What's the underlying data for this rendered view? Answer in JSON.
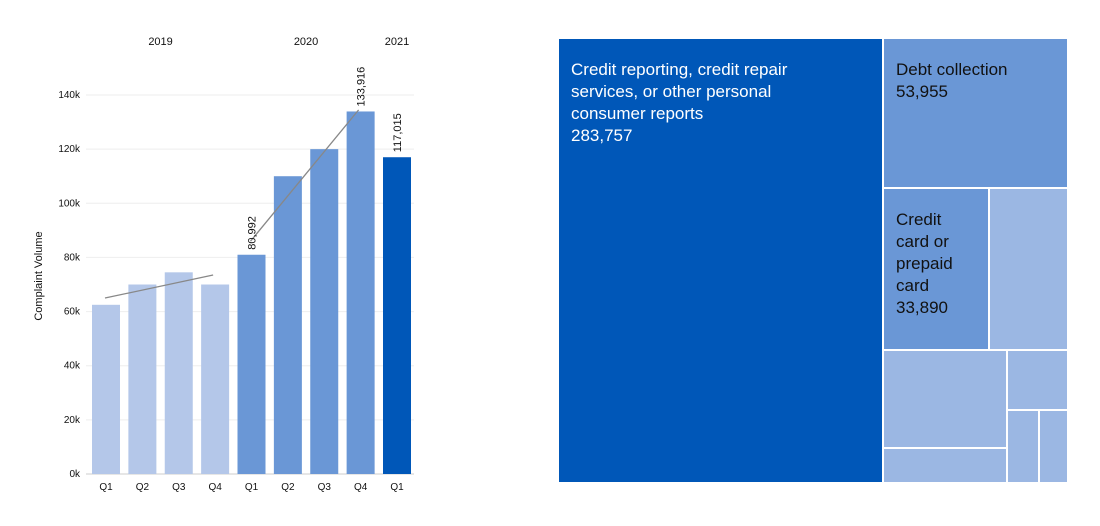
{
  "chart_data": [
    {
      "type": "bar",
      "ylabel": "Complaint Volume",
      "ylim": [
        0,
        140000
      ],
      "yticks": [
        0,
        20000,
        40000,
        60000,
        80000,
        100000,
        120000,
        140000
      ],
      "ytick_labels": [
        "0k",
        "20k",
        "40k",
        "60k",
        "80k",
        "100k",
        "120k",
        "140k"
      ],
      "categories": [
        "Q1",
        "Q2",
        "Q3",
        "Q4",
        "Q1",
        "Q2",
        "Q3",
        "Q4",
        "Q1"
      ],
      "years": [
        "2019",
        "2019",
        "2019",
        "2019",
        "2020",
        "2020",
        "2020",
        "2020",
        "2021"
      ],
      "year_labels": [
        "2019",
        "2020",
        "2021"
      ],
      "values": [
        62500,
        70000,
        74500,
        70000,
        80992,
        110000,
        120000,
        133916,
        117015
      ],
      "value_labels": [
        "",
        "",
        "",
        "",
        "80,992",
        "",
        "",
        "133,916",
        "117,015"
      ],
      "colors": [
        "#b4c7e9",
        "#b4c7e9",
        "#b4c7e9",
        "#b4c7e9",
        "#6a97d6",
        "#6a97d6",
        "#6a97d6",
        "#6a97d6",
        "#0057b8"
      ],
      "trend_lines": [
        {
          "from_index": 0,
          "to_index": 3,
          "from_value": 65000,
          "to_value": 73500
        },
        {
          "from_index": 4,
          "to_index": 7,
          "from_value": 86000,
          "to_value": 134500
        }
      ],
      "trend_color": "#888888",
      "grid": true
    },
    {
      "type": "treemap",
      "cells": [
        {
          "name": "Credit reporting, credit repair services, or other personal consumer reports",
          "lines": [
            "Credit reporting, credit repair",
            "services, or other personal",
            "consumer reports"
          ],
          "value": "283,757",
          "color": "#0057b8",
          "text_color": "#ffffff"
        },
        {
          "name": "Debt collection",
          "lines": [
            "Debt collection"
          ],
          "value": "53,955",
          "color": "#6a97d6",
          "text_color": "#111111"
        },
        {
          "name": "Credit card or prepaid card",
          "lines": [
            "Credit",
            "card or",
            "prepaid",
            "card"
          ],
          "value": "33,890",
          "color": "#6a97d6",
          "text_color": "#111111"
        },
        {
          "name": "",
          "lines": [],
          "value": "",
          "color": "#9bb7e3",
          "text_color": "#111111"
        },
        {
          "name": "",
          "lines": [],
          "value": "",
          "color": "#9bb7e3",
          "text_color": "#111111"
        },
        {
          "name": "",
          "lines": [],
          "value": "",
          "color": "#9bb7e3",
          "text_color": "#111111"
        },
        {
          "name": "",
          "lines": [],
          "value": "",
          "color": "#9bb7e3",
          "text_color": "#111111"
        },
        {
          "name": "",
          "lines": [],
          "value": "",
          "color": "#9bb7e3",
          "text_color": "#111111"
        },
        {
          "name": "",
          "lines": [],
          "value": "",
          "color": "#9bb7e3",
          "text_color": "#111111"
        }
      ]
    }
  ]
}
